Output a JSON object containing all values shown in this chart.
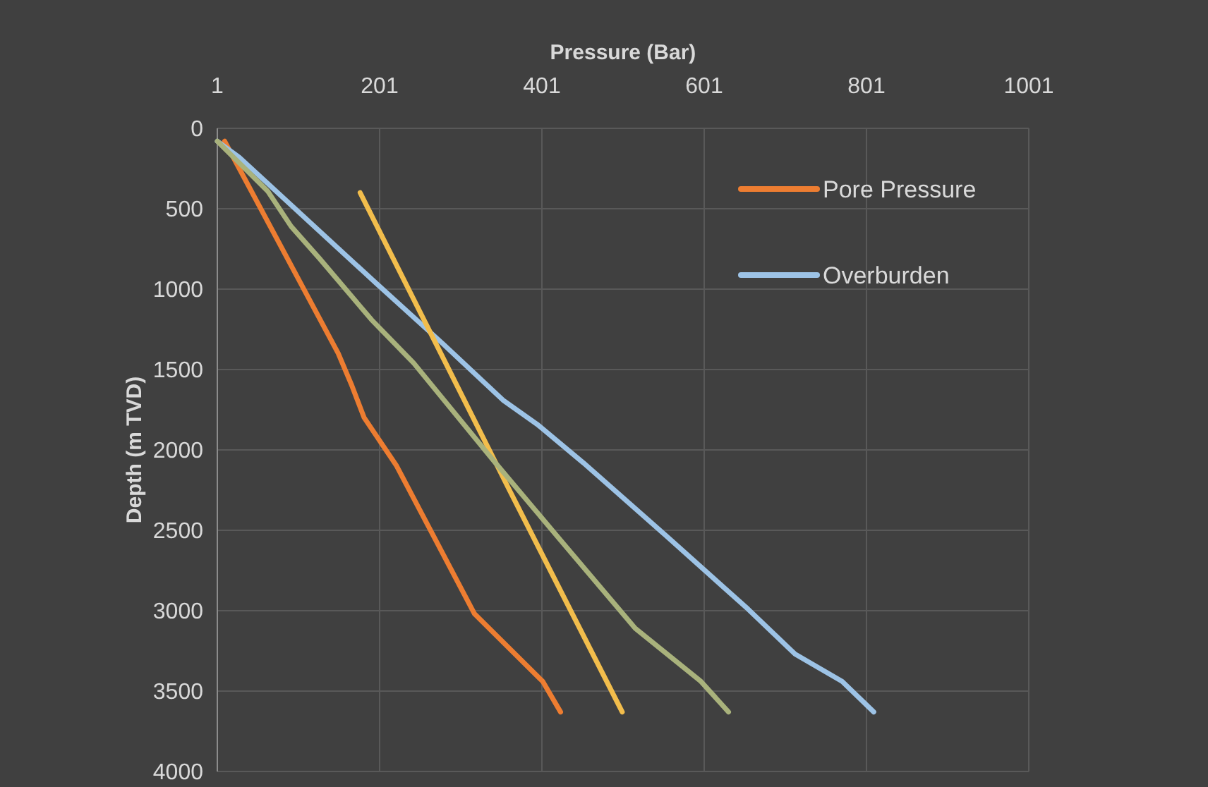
{
  "chart_data": {
    "type": "line",
    "xlabel": "Pressure (Bar)",
    "ylabel": "Depth (m TVD)",
    "xlim": [
      1,
      1001
    ],
    "xticks": [
      1,
      201,
      401,
      601,
      801,
      1001
    ],
    "ylim": [
      4000,
      0
    ],
    "yticks": [
      0,
      500,
      1000,
      1500,
      2000,
      2500,
      3000,
      3500,
      4000
    ],
    "grid": true,
    "legend": "top right",
    "line_style": "solid",
    "marker": "none",
    "series": [
      {
        "name": "Pore Pressure",
        "color": "#ed7d31",
        "x": [
          10,
          150,
          166,
          182,
          222,
          318,
          402,
          424
        ],
        "values": [
          80,
          1400,
          1590,
          1800,
          2100,
          3020,
          3440,
          3630
        ]
      },
      {
        "name": "Overburden",
        "color": "#9dc3e6",
        "x": [
          1,
          28,
          196,
          279,
          353,
          395,
          452,
          551,
          655,
          713,
          771,
          810
        ],
        "values": [
          80,
          180,
          960,
          1340,
          1690,
          1840,
          2080,
          2520,
          2990,
          3270,
          3440,
          3630
        ]
      },
      {
        "color": "#f2bd4c",
        "x": [
          177,
          361,
          500
        ],
        "values": [
          400,
          2250,
          3630
        ]
      },
      {
        "color": "#a9b27c",
        "x": [
          1,
          63,
          92,
          127,
          191,
          243,
          342,
          417,
          516,
          597,
          631
        ],
        "values": [
          80,
          390,
          610,
          810,
          1190,
          1460,
          2070,
          2520,
          3110,
          3440,
          3630
        ]
      }
    ]
  }
}
